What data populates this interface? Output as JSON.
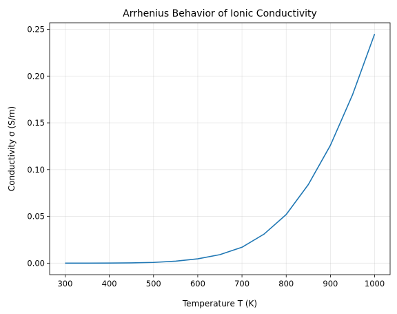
{
  "chart_data": {
    "type": "line",
    "title": "Arrhenius Behavior of Ionic Conductivity",
    "xlabel": "Temperature T (K)",
    "ylabel": "Conductivity σ (S/m)",
    "xlim": [
      265,
      1035
    ],
    "ylim": [
      -0.0123,
      0.257
    ],
    "xticks": [
      300,
      400,
      500,
      600,
      700,
      800,
      900,
      1000
    ],
    "yticks": [
      0.0,
      0.05,
      0.1,
      0.15,
      0.2,
      0.25
    ],
    "xtick_labels": [
      "300",
      "400",
      "500",
      "600",
      "700",
      "800",
      "900",
      "1000"
    ],
    "ytick_labels": [
      "0.00",
      "0.05",
      "0.10",
      "0.15",
      "0.20",
      "0.25"
    ],
    "grid": true,
    "series": [
      {
        "color": "#1f77b4",
        "x": [
          300,
          350,
          400,
          450,
          500,
          550,
          600,
          650,
          700,
          750,
          800,
          850,
          900,
          950,
          1000
        ],
        "y": [
          0.0,
          0.0,
          0.0001,
          0.0003,
          0.0008,
          0.0021,
          0.0046,
          0.0091,
          0.017,
          0.0311,
          0.052,
          0.084,
          0.126,
          0.18,
          0.245
        ]
      }
    ]
  }
}
